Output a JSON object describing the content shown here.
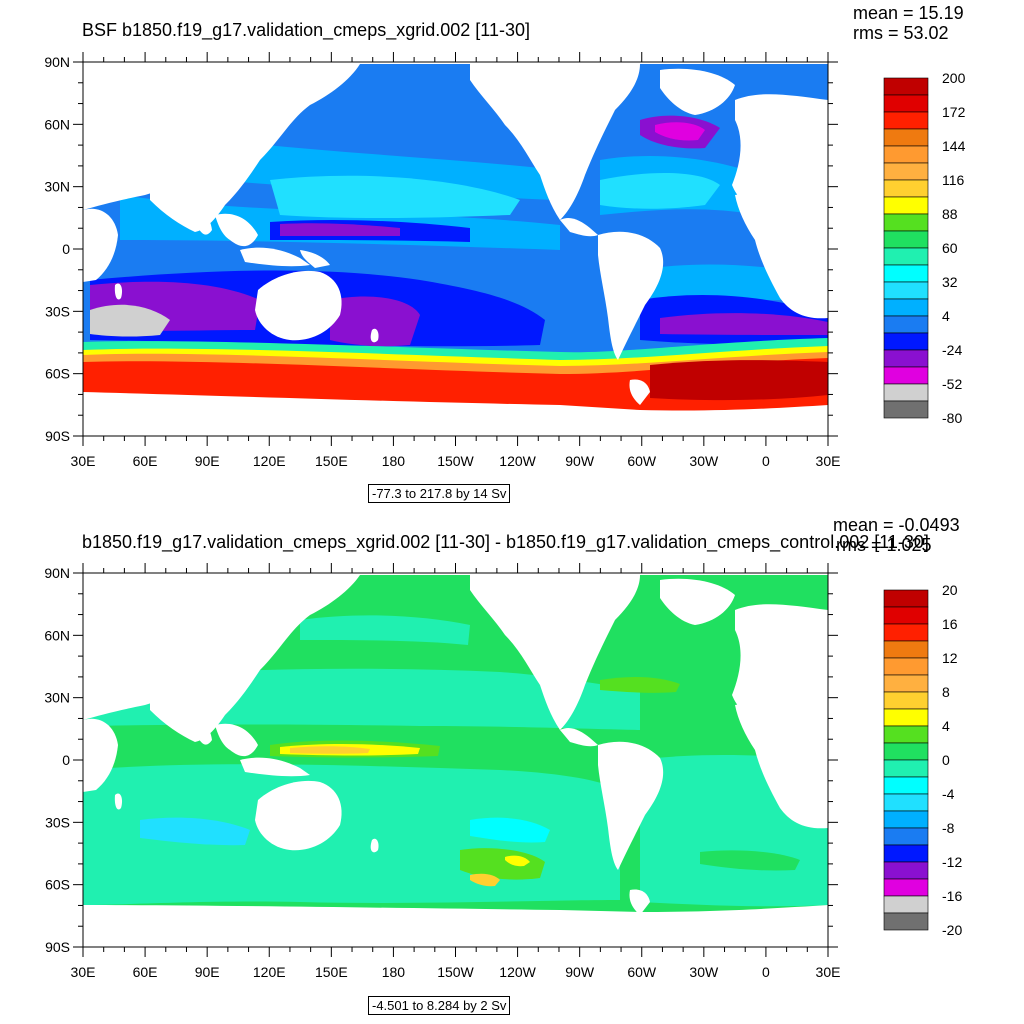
{
  "panels": [
    {
      "title": "BSF b1850.f19_g17.validation_cmeps_xgrid.002 [11-30]",
      "mean": "mean = 15.19",
      "rms": "rms = 53.02",
      "range": "-77.3 to 217.8 by 14 Sv",
      "colorbar": {
        "labels": [
          "200",
          "172",
          "144",
          "116",
          "88",
          "60",
          "32",
          "4",
          "-24",
          "-52",
          "-80"
        ],
        "colors": [
          "#c00000",
          "#e00000",
          "#ff2000",
          "#ef7a10",
          "#ff9a30",
          "#ffb040",
          "#ffd030",
          "#ffff00",
          "#55e020",
          "#20e060",
          "#20f0b0",
          "#00ffff",
          "#20e0ff",
          "#00b0ff",
          "#1a7cf2",
          "#0018ff",
          "#8a10d0",
          "#e000e0",
          "#d0d0d0",
          "#707070"
        ]
      }
    },
    {
      "title": "b1850.f19_g17.validation_cmeps_xgrid.002 [11-30] - b1850.f19_g17.validation_cmeps_control.002 [11-30]",
      "mean": "mean = -0.0493",
      "rms": "rms = 1.025",
      "range": "-4.501 to 8.284 by 2 Sv",
      "colorbar": {
        "labels": [
          "20",
          "16",
          "12",
          "8",
          "4",
          "0",
          "-4",
          "-8",
          "-12",
          "-16",
          "-20"
        ],
        "colors": [
          "#c00000",
          "#e00000",
          "#ff2000",
          "#ef7a10",
          "#ff9a30",
          "#ffb040",
          "#ffd030",
          "#ffff00",
          "#55e020",
          "#20e060",
          "#20f0b0",
          "#00ffff",
          "#20e0ff",
          "#00b0ff",
          "#1a7cf2",
          "#0018ff",
          "#8a10d0",
          "#e000e0",
          "#d0d0d0",
          "#707070"
        ]
      }
    }
  ],
  "axes": {
    "lat_labels": [
      "90N",
      "60N",
      "30N",
      "0",
      "30S",
      "60S",
      "90S"
    ],
    "lon_labels": [
      "30E",
      "60E",
      "90E",
      "120E",
      "150E",
      "180",
      "150W",
      "120W",
      "90W",
      "60W",
      "30W",
      "0",
      "30E"
    ]
  },
  "colors": {
    "land": "#ffffff",
    "ocean_base_top": "#1a7cf2",
    "ocean_base_bottom": "#20e060"
  }
}
